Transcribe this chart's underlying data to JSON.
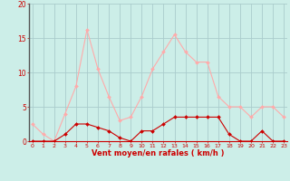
{
  "hours": [
    0,
    1,
    2,
    3,
    4,
    5,
    6,
    7,
    8,
    9,
    10,
    11,
    12,
    13,
    14,
    15,
    16,
    17,
    18,
    19,
    20,
    21,
    22,
    23
  ],
  "wind_avg": [
    0,
    0,
    0,
    1,
    2.5,
    2.5,
    2,
    1.5,
    0.5,
    0,
    1.5,
    1.5,
    2.5,
    3.5,
    3.5,
    3.5,
    3.5,
    3.5,
    1,
    0,
    0,
    1.5,
    0,
    0
  ],
  "wind_gust": [
    2.5,
    1,
    0,
    4,
    8,
    16.2,
    10.5,
    6.5,
    3,
    3.5,
    6.5,
    10.5,
    13,
    15.5,
    13,
    11.5,
    11.5,
    6.5,
    5,
    5,
    3.5,
    5,
    5,
    3.5
  ],
  "bg_color": "#cceee8",
  "grid_color": "#aacccc",
  "line_color_avg": "#cc0000",
  "line_color_gust": "#ffaaaa",
  "marker_size": 2.0,
  "ylabel_ticks": [
    0,
    5,
    10,
    15,
    20
  ],
  "ylim": [
    0,
    20
  ],
  "xlim": [
    -0.3,
    23.3
  ],
  "xlabel": "Vent moyen/en rafales ( km/h )",
  "xlabel_color": "#cc0000",
  "tick_color": "#cc0000",
  "left_spine_color": "#555555"
}
